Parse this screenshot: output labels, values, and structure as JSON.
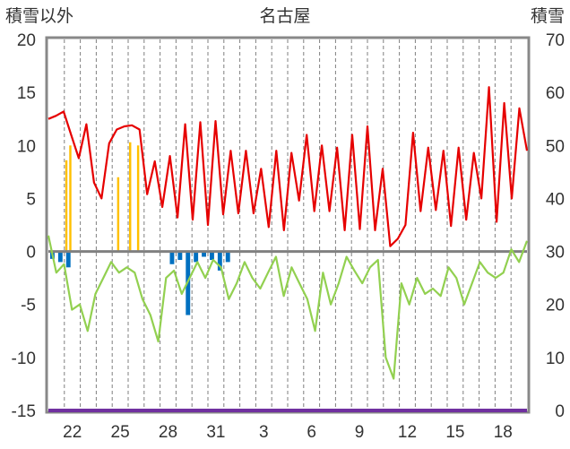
{
  "chart_data": {
    "type": "bar+line",
    "title": "名古屋",
    "left_axis_label": "積雪以外",
    "right_axis_label": "積雪",
    "y_left": {
      "min": -15,
      "max": 20,
      "ticks": [
        20,
        15,
        10,
        5,
        0,
        -5,
        -10,
        -15
      ]
    },
    "y_right": {
      "min": 0,
      "max": 70,
      "ticks": [
        70,
        60,
        50,
        40,
        30,
        20,
        10,
        0
      ]
    },
    "x_labels": [
      "22",
      "25",
      "28",
      "31",
      "3",
      "6",
      "9",
      "12",
      "15",
      "18"
    ],
    "days": 30,
    "series": [
      {
        "key": "red_line",
        "axis": "left",
        "color": "#e60000",
        "values": [
          12.5,
          12.8,
          13.2,
          11.0,
          8.8,
          12.0,
          6.5,
          5.0,
          10.2,
          11.5,
          11.8,
          11.9,
          11.5,
          5.4,
          8.5,
          4.2,
          9.0,
          3.2,
          12.0,
          3.0,
          12.2,
          2.5,
          12.3,
          3.5,
          9.5,
          3.6,
          9.5,
          3.6,
          7.8,
          2.3,
          9.5,
          2.0,
          9.3,
          4.8,
          11.0,
          3.8,
          10.0,
          3.8,
          9.8,
          2.0,
          11.0,
          2.1,
          11.8,
          2.0,
          7.8,
          0.5,
          1.2,
          2.5,
          11.2,
          3.8,
          9.8,
          3.9,
          9.5,
          2.4,
          9.8,
          3.0,
          9.3,
          5.0,
          15.5,
          2.8,
          14.0,
          5.0,
          13.5,
          9.5
        ]
      },
      {
        "key": "green_line",
        "axis": "left",
        "color": "#92d050",
        "values": [
          1.5,
          -2.0,
          -1.2,
          -5.5,
          -5.0,
          -7.5,
          -4.0,
          -2.5,
          -1.0,
          -2.0,
          -1.5,
          -2.0,
          -4.5,
          -6.0,
          -8.5,
          -2.5,
          -1.8,
          -4.0,
          -2.5,
          -1.0,
          -2.5,
          -0.8,
          -1.5,
          -4.5,
          -3.0,
          -1.0,
          -2.5,
          -3.5,
          -2.0,
          -0.5,
          -4.2,
          -1.5,
          -3.0,
          -4.5,
          -7.5,
          -2.0,
          -5.0,
          -3.0,
          -0.5,
          -1.8,
          -3.0,
          -1.5,
          -0.8,
          -10.0,
          -12.0,
          -3.0,
          -5.0,
          -2.5,
          -4.0,
          -3.5,
          -4.2,
          -1.5,
          -2.5,
          -5.0,
          -3.0,
          -1.0,
          -2.0,
          -2.5,
          -2.0,
          0.2,
          -1.0,
          1.0
        ]
      },
      {
        "key": "yellow_bars",
        "axis": "left",
        "color": "#ffc000",
        "values": [
          0,
          0,
          0,
          0,
          8.6,
          10.0,
          0,
          0,
          0,
          0,
          0,
          0,
          0,
          0,
          0,
          0,
          0,
          7.0,
          0,
          0,
          10.3,
          0,
          10.0,
          0,
          0,
          0,
          0,
          0,
          0,
          0,
          0,
          0,
          0,
          0,
          0,
          0,
          0,
          0,
          0,
          0,
          0,
          0,
          0,
          0,
          0,
          0,
          0,
          0,
          0,
          0,
          0,
          0,
          0,
          0,
          0,
          0,
          0,
          0,
          0,
          0,
          0,
          0,
          0,
          0,
          0,
          0,
          0,
          0,
          0,
          0,
          0,
          0,
          0,
          0,
          0,
          0,
          0,
          0,
          0,
          0,
          0,
          0,
          0,
          0,
          0,
          0,
          0,
          0,
          0,
          0,
          0,
          0,
          0,
          0,
          0,
          0,
          0,
          0,
          0,
          0,
          0,
          0,
          0,
          0,
          0,
          0,
          0,
          0,
          0,
          0,
          0,
          0,
          0,
          0,
          0,
          0,
          0,
          0,
          0,
          0
        ]
      },
      {
        "key": "blue_bars",
        "axis": "left",
        "color": "#0070c0",
        "values": [
          -0.7,
          -1.0,
          -1.5,
          0,
          0,
          0,
          0,
          0,
          0,
          0,
          0,
          0,
          0,
          0,
          0,
          -1.2,
          -0.8,
          -6.0,
          -1.0,
          -0.5,
          -0.8,
          -1.8,
          -1.0,
          0,
          0,
          0,
          0,
          0,
          0,
          0,
          0,
          0,
          0,
          0,
          0,
          0,
          0,
          0,
          0,
          0,
          0,
          0,
          0,
          0,
          0,
          0,
          0,
          0,
          0,
          0,
          0,
          0,
          0,
          0,
          0,
          0,
          0,
          0,
          0,
          0
        ]
      },
      {
        "key": "purple_line",
        "axis": "right",
        "color": "#7030a0",
        "values": [
          0,
          0,
          0,
          0,
          0,
          0,
          0,
          0,
          0,
          0,
          0,
          0,
          0,
          0,
          0,
          0,
          0,
          0,
          0,
          0,
          0,
          0,
          0,
          0,
          0,
          0,
          0,
          0,
          0,
          0,
          0,
          0,
          0,
          0,
          0,
          0,
          0,
          0,
          0,
          0,
          0,
          0,
          0,
          0,
          0,
          0,
          0,
          0,
          0,
          0,
          0,
          0,
          0,
          0,
          0,
          0,
          0,
          0,
          0,
          0
        ]
      }
    ],
    "grid": true
  }
}
